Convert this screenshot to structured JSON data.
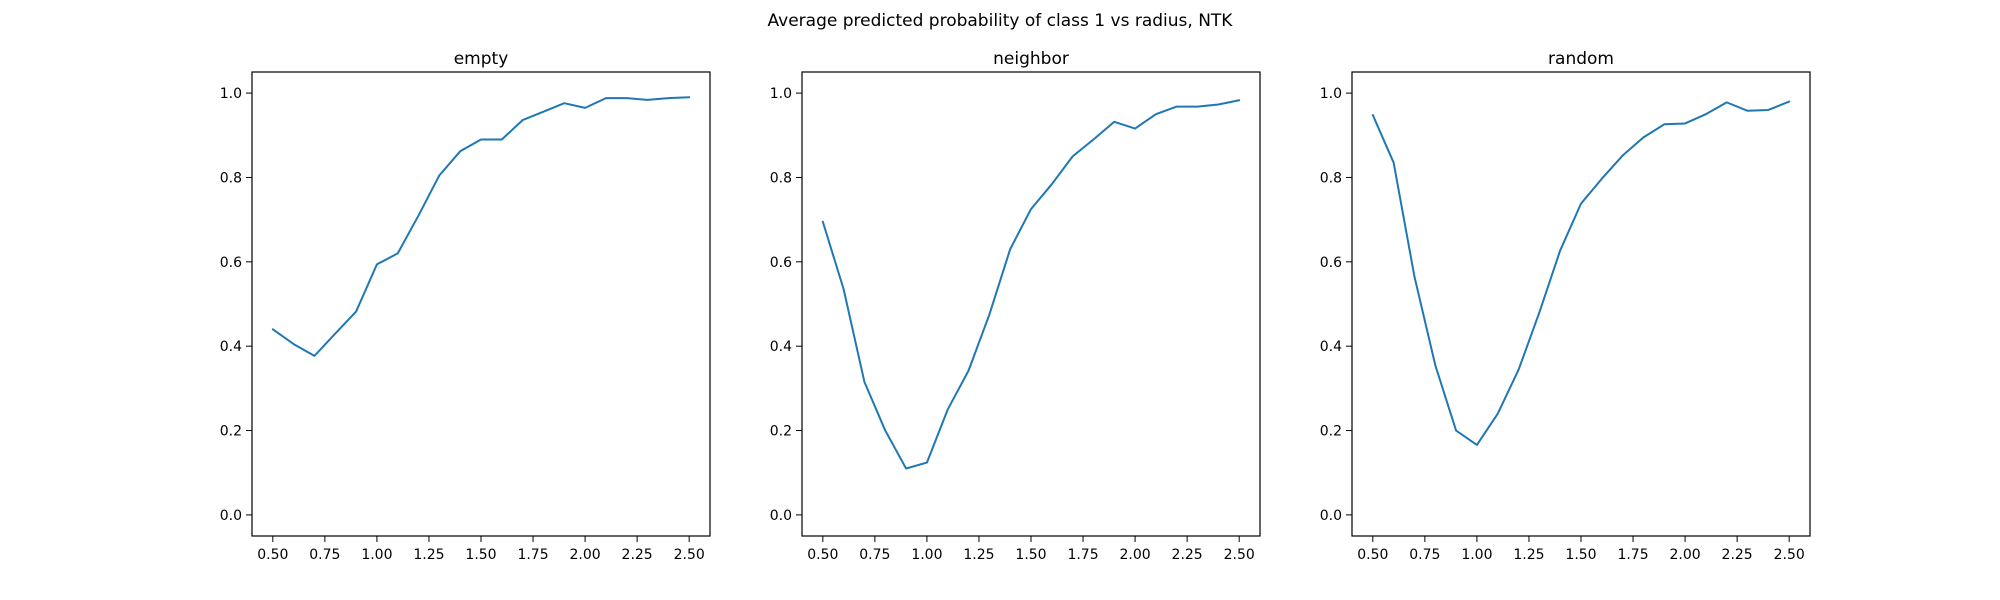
{
  "figure_title": "Average predicted probability of class 1 vs radius, NTK",
  "colors": {
    "series": "#1f77b4",
    "axes": "#000000",
    "background": "#ffffff"
  },
  "chart_data": [
    {
      "type": "line",
      "title": "empty",
      "xlabel": "",
      "ylabel": "",
      "xlim": [
        0.4,
        2.6
      ],
      "ylim": [
        -0.05,
        1.05
      ],
      "xticks": [
        "0.50",
        "0.75",
        "1.00",
        "1.25",
        "1.50",
        "1.75",
        "2.00",
        "2.25",
        "2.50"
      ],
      "yticks": [
        "0.0",
        "0.2",
        "0.4",
        "0.6",
        "0.8",
        "1.0"
      ],
      "grid": false,
      "series": [
        {
          "x": [
            0.5,
            0.6,
            0.7,
            0.8,
            0.9,
            1.0,
            1.1,
            1.2,
            1.3,
            1.4,
            1.5,
            1.6,
            1.7,
            1.8,
            1.9,
            2.0,
            2.1,
            2.2,
            2.3,
            2.4,
            2.5
          ],
          "y": [
            0.44,
            0.405,
            0.377,
            0.43,
            0.482,
            0.594,
            0.62,
            0.71,
            0.805,
            0.862,
            0.89,
            0.89,
            0.936,
            0.956,
            0.976,
            0.965,
            0.988,
            0.988,
            0.984,
            0.988,
            0.99
          ]
        }
      ]
    },
    {
      "type": "line",
      "title": "neighbor",
      "xlabel": "",
      "ylabel": "",
      "xlim": [
        0.4,
        2.6
      ],
      "ylim": [
        -0.05,
        1.05
      ],
      "xticks": [
        "0.50",
        "0.75",
        "1.00",
        "1.25",
        "1.50",
        "1.75",
        "2.00",
        "2.25",
        "2.50"
      ],
      "yticks": [
        "0.0",
        "0.2",
        "0.4",
        "0.6",
        "0.8",
        "1.0"
      ],
      "grid": false,
      "series": [
        {
          "x": [
            0.5,
            0.6,
            0.7,
            0.8,
            0.9,
            1.0,
            1.1,
            1.2,
            1.3,
            1.4,
            1.5,
            1.6,
            1.7,
            1.8,
            1.9,
            2.0,
            2.1,
            2.2,
            2.3,
            2.4,
            2.5
          ],
          "y": [
            0.695,
            0.535,
            0.315,
            0.2,
            0.11,
            0.124,
            0.25,
            0.342,
            0.475,
            0.63,
            0.725,
            0.784,
            0.85,
            0.89,
            0.932,
            0.916,
            0.95,
            0.968,
            0.968,
            0.973,
            0.983
          ]
        }
      ]
    },
    {
      "type": "line",
      "title": "random",
      "xlabel": "",
      "ylabel": "",
      "xlim": [
        0.4,
        2.6
      ],
      "ylim": [
        -0.05,
        1.05
      ],
      "xticks": [
        "0.50",
        "0.75",
        "1.00",
        "1.25",
        "1.50",
        "1.75",
        "2.00",
        "2.25",
        "2.50"
      ],
      "yticks": [
        "0.0",
        "0.2",
        "0.4",
        "0.6",
        "0.8",
        "1.0"
      ],
      "grid": false,
      "series": [
        {
          "x": [
            0.5,
            0.6,
            0.7,
            0.8,
            0.9,
            1.0,
            1.1,
            1.2,
            1.3,
            1.4,
            1.5,
            1.6,
            1.7,
            1.8,
            1.9,
            2.0,
            2.1,
            2.2,
            2.3,
            2.4,
            2.5
          ],
          "y": [
            0.948,
            0.835,
            0.565,
            0.355,
            0.2,
            0.166,
            0.24,
            0.344,
            0.48,
            0.627,
            0.738,
            0.797,
            0.852,
            0.895,
            0.926,
            0.928,
            0.95,
            0.978,
            0.958,
            0.96,
            0.98
          ]
        }
      ]
    }
  ]
}
